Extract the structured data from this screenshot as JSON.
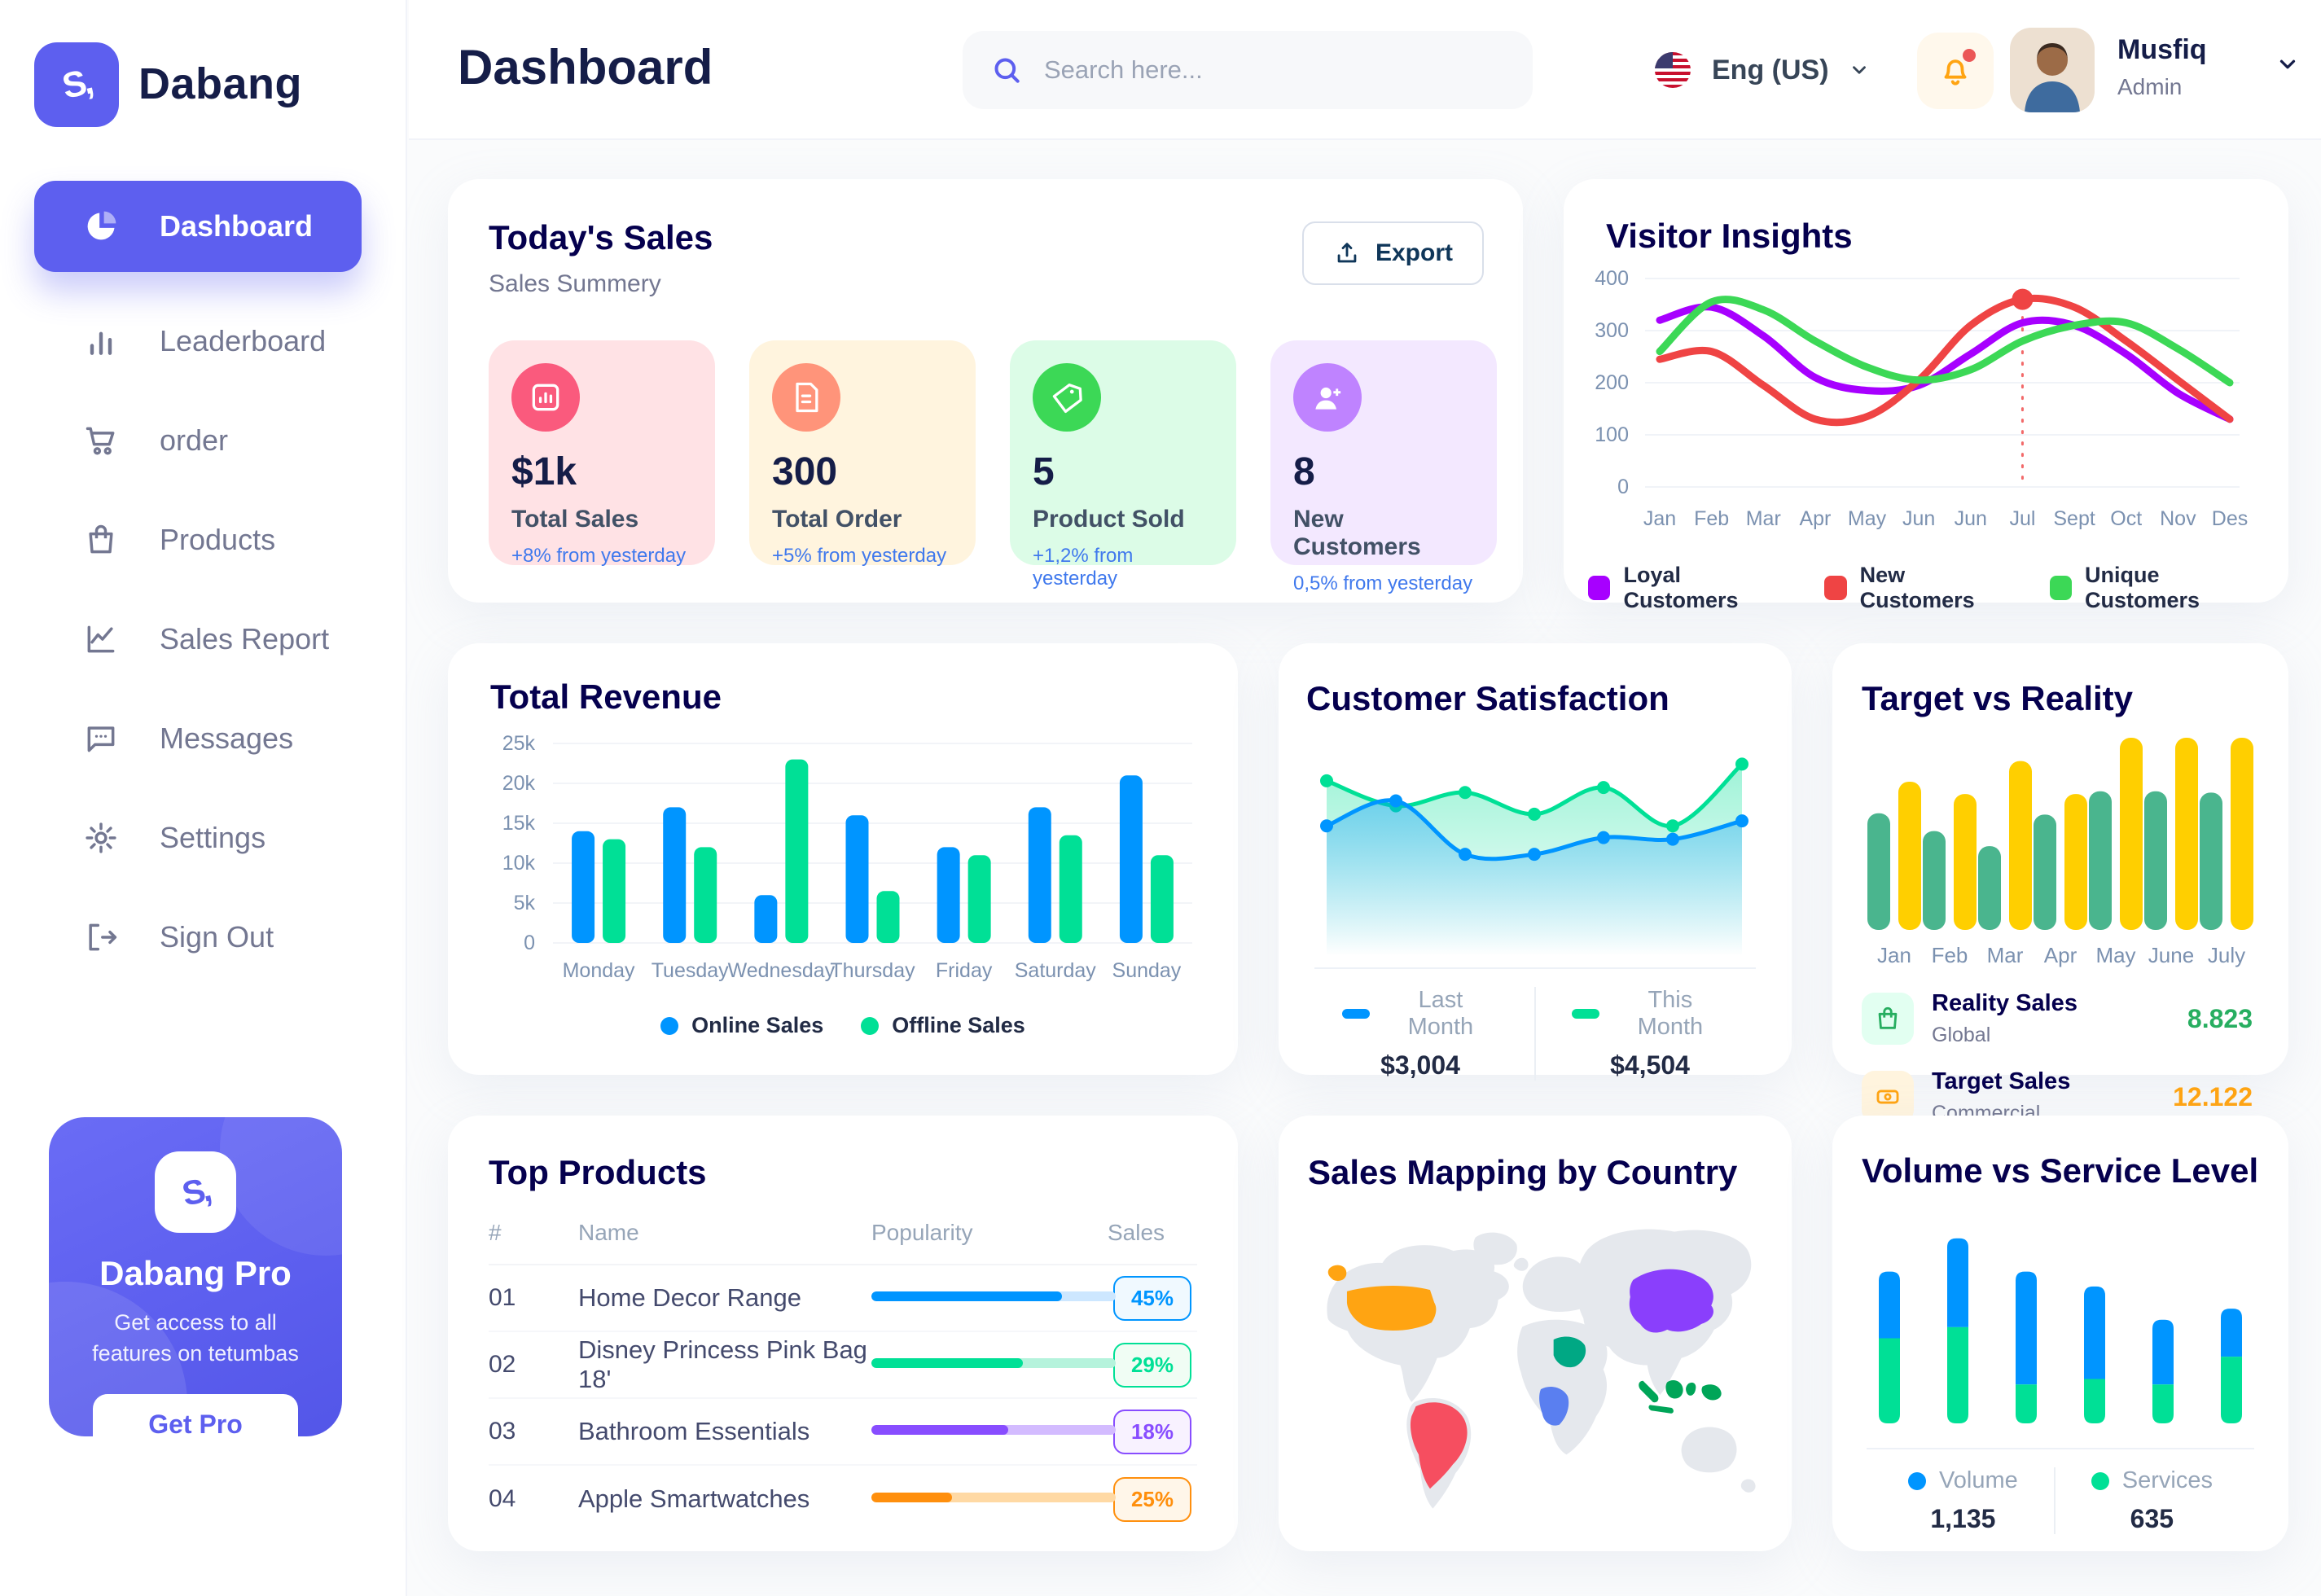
{
  "app": {
    "brand": "Dabang",
    "accent": "#5D5FEF"
  },
  "header": {
    "page_title": "Dashboard",
    "search_placeholder": "Search here...",
    "language": "Eng (US)",
    "user": {
      "name": "Musfiq",
      "role": "Admin"
    }
  },
  "sidebar": {
    "items": [
      {
        "label": "Dashboard",
        "active": true
      },
      {
        "label": "Leaderboard",
        "active": false
      },
      {
        "label": "order",
        "active": false
      },
      {
        "label": "Products",
        "active": false
      },
      {
        "label": "Sales Report",
        "active": false
      },
      {
        "label": "Messages",
        "active": false
      },
      {
        "label": "Settings",
        "active": false
      },
      {
        "label": "Sign Out",
        "active": false
      }
    ],
    "pro": {
      "title": "Dabang Pro",
      "text": "Get access to all features on tetumbas",
      "button": "Get Pro"
    }
  },
  "today_sales": {
    "title": "Today's Sales",
    "subtitle": "Sales Summery",
    "export_label": "Export",
    "cards": [
      {
        "value": "$1k",
        "label": "Total Sales",
        "delta": "+8% from yesterday",
        "bg": "#FFE2E5",
        "icon_bg": "#FA5A7D",
        "icon": "bar-chart"
      },
      {
        "value": "300",
        "label": "Total Order",
        "delta": "+5% from yesterday",
        "bg": "#FFF4DE",
        "icon_bg": "#FF947A",
        "icon": "order-file"
      },
      {
        "value": "5",
        "label": "Product Sold",
        "delta": "+1,2% from yesterday",
        "bg": "#DCFCE7",
        "icon_bg": "#3CD856",
        "icon": "tag"
      },
      {
        "value": "8",
        "label": "New Customers",
        "delta": "0,5% from yesterday",
        "bg": "#F3E8FF",
        "icon_bg": "#BF83FF",
        "icon": "user-plus"
      }
    ]
  },
  "charts": {
    "visitor_insights": {
      "type": "line",
      "title": "Visitor Insights",
      "x_labels": [
        "Jan",
        "Feb",
        "Mar",
        "Apr",
        "May",
        "Jun",
        "Jun",
        "Jul",
        "Sept",
        "Oct",
        "Nov",
        "Des"
      ],
      "y_ticks": [
        0,
        100,
        200,
        300,
        400
      ],
      "series": [
        {
          "name": "Loyal Customers",
          "color": "#A700FF",
          "values": [
            320,
            345,
            290,
            210,
            185,
            195,
            255,
            315,
            310,
            255,
            180,
            130
          ]
        },
        {
          "name": "New Customers",
          "color": "#EF4444",
          "values": [
            245,
            260,
            195,
            130,
            135,
            205,
            310,
            360,
            345,
            280,
            205,
            130
          ]
        },
        {
          "name": "Unique Customers",
          "color": "#3CD856",
          "values": [
            260,
            355,
            340,
            280,
            230,
            205,
            225,
            280,
            310,
            315,
            265,
            200
          ]
        }
      ],
      "marker": {
        "series": 1,
        "index": 7
      }
    },
    "total_revenue": {
      "type": "bar",
      "title": "Total Revenue",
      "categories": [
        "Monday",
        "Tuesday",
        "Wednesday",
        "Thursday",
        "Friday",
        "Saturday",
        "Sunday"
      ],
      "y_tick_values": [
        0,
        5,
        10,
        15,
        20,
        25
      ],
      "y_tick_labels": [
        "0",
        "5k",
        "10k",
        "15k",
        "20k",
        "25k"
      ],
      "ylim": [
        0,
        25
      ],
      "series": [
        {
          "name": "Online Sales",
          "color": "#0095FF",
          "values": [
            14,
            17,
            6,
            16,
            12,
            17,
            21
          ]
        },
        {
          "name": "Offline Sales",
          "color": "#00E096",
          "values": [
            13,
            12,
            23,
            6.5,
            11,
            13.5,
            11
          ]
        }
      ]
    },
    "customer_satisfaction": {
      "type": "area",
      "title": "Customer Satisfaction",
      "series": [
        {
          "name": "Last Month",
          "color": "#0095FF",
          "total": "$3,004",
          "values": [
            55,
            70,
            38,
            38,
            48,
            47,
            58
          ]
        },
        {
          "name": "This Month",
          "color": "#00E096",
          "total": "$4,504",
          "values": [
            82,
            67,
            75,
            62,
            78,
            55,
            92
          ]
        }
      ],
      "ylim": [
        0,
        100
      ]
    },
    "target_reality": {
      "type": "bar",
      "title": "Target vs Reality",
      "categories": [
        "Jan",
        "Feb",
        "Mar",
        "Apr",
        "May",
        "June",
        "July"
      ],
      "ylim": [
        0,
        14
      ],
      "series": [
        {
          "name": "Reality Sales",
          "sub": "Global",
          "color": "#4AB58E",
          "icon_bg": "#E2FFF1",
          "value_label": "8.823",
          "value_color": "#27AE60",
          "values": [
            8.5,
            7.2,
            6.1,
            8.4,
            10.1,
            10.1,
            10
          ]
        },
        {
          "name": "Target Sales",
          "sub": "Commercial",
          "color": "#FFCF00",
          "icon_bg": "#FFF4DE",
          "value_label": "12.122",
          "value_color": "#FFA412",
          "values": [
            10.8,
            9.9,
            12.3,
            9.9,
            14,
            14,
            14
          ]
        }
      ]
    },
    "volume_service": {
      "type": "bar",
      "title": "Volume vs Service Level",
      "ylim": [
        0,
        110
      ],
      "series": [
        {
          "name": "Volume",
          "color": "#0095FF",
          "total": "1,135",
          "values": [
            36,
            48,
            61,
            50,
            35,
            26
          ]
        },
        {
          "name": "Services",
          "color": "#00E096",
          "total": "635",
          "values": [
            46,
            52,
            21,
            24,
            21,
            36
          ]
        }
      ]
    }
  },
  "top_products": {
    "title": "Top Products",
    "headers": [
      "#",
      "Name",
      "Popularity",
      "Sales"
    ],
    "rows": [
      {
        "num": "01",
        "name": "Home Decor Range",
        "popularity": 0.78,
        "sales": "45%",
        "color": "#0095FF",
        "track": "#CDE7FF",
        "badge_bg": "#F0F9FF"
      },
      {
        "num": "02",
        "name": "Disney Princess Pink Bag 18'",
        "popularity": 0.62,
        "sales": "29%",
        "color": "#00E096",
        "track": "#B5F3DC",
        "badge_bg": "#F0FDF4"
      },
      {
        "num": "03",
        "name": "Bathroom Essentials",
        "popularity": 0.56,
        "sales": "18%",
        "color": "#884DFF",
        "track": "#D3BBFF",
        "badge_bg": "#F8F2FF"
      },
      {
        "num": "04",
        "name": "Apple Smartwatches",
        "popularity": 0.33,
        "sales": "25%",
        "color": "#FF8F0D",
        "track": "#FFD9A4",
        "badge_bg": "#FFF6E9"
      }
    ]
  },
  "sales_map": {
    "title": "Sales Mapping by Country",
    "land_color": "#E5E8ED",
    "countries": [
      {
        "id": "usa",
        "name": "United States",
        "color": "#FFA412"
      },
      {
        "id": "brazil",
        "name": "Brazil",
        "color": "#F64E60"
      },
      {
        "id": "saudi",
        "name": "Saudi Arabia",
        "color": "#00A884"
      },
      {
        "id": "drc",
        "name": "DR Congo",
        "color": "#5A7FF0"
      },
      {
        "id": "china",
        "name": "China",
        "color": "#8A3FFC"
      },
      {
        "id": "indonesia",
        "name": "Indonesia",
        "color": "#00A558"
      }
    ]
  }
}
